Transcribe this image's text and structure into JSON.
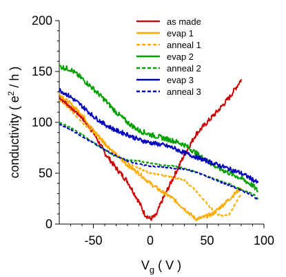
{
  "chart_data": {
    "type": "line",
    "title": "",
    "xlabel": "V",
    "xlabel_sub": "g",
    "xlabel_unit": " ( V )",
    "ylabel": "conductivity ( e",
    "ylabel_sup": "2",
    "ylabel_tail": " / h )",
    "xlim": [
      -80,
      100
    ],
    "ylim": [
      0,
      200
    ],
    "xticks": [
      -50,
      0,
      50,
      100
    ],
    "yticks": [
      0,
      50,
      100,
      150,
      200
    ],
    "grid": false,
    "legend_position": "top-right",
    "series": [
      {
        "name": "as made",
        "color": "#cc0000",
        "dash": "solid",
        "x": [
          -80,
          -70,
          -60,
          -50,
          -40,
          -30,
          -20,
          -10,
          -5,
          0,
          5,
          10,
          20,
          30,
          40,
          50,
          60,
          70,
          80
        ],
        "y": [
          125,
          115,
          105,
          90,
          70,
          55,
          42,
          22,
          10,
          5,
          8,
          22,
          45,
          68,
          88,
          100,
          112,
          125,
          142
        ],
        "noise": 2.5
      },
      {
        "name": "evap 1",
        "color": "#ffaa00",
        "dash": "solid",
        "x": [
          -80,
          -70,
          -60,
          -50,
          -40,
          -30,
          -20,
          -10,
          0,
          10,
          20,
          30,
          40,
          45,
          50,
          55,
          60,
          70,
          80
        ],
        "y": [
          128,
          118,
          108,
          92,
          80,
          68,
          58,
          50,
          40,
          32,
          25,
          15,
          5,
          6,
          8,
          10,
          15,
          25,
          36
        ],
        "noise": 2.0
      },
      {
        "name": "anneal 1",
        "color": "#ffaa00",
        "dash": "dashed",
        "x": [
          -80,
          -70,
          -60,
          -50,
          -40,
          -30,
          -20,
          -10,
          0,
          10,
          20,
          30,
          40,
          50,
          55,
          60,
          63,
          65,
          70,
          80
        ],
        "y": [
          122,
          112,
          100,
          90,
          78,
          68,
          60,
          55,
          50,
          48,
          46,
          43,
          33,
          20,
          14,
          9,
          8,
          8,
          10,
          30
        ],
        "noise": 0.8
      },
      {
        "name": "evap 2",
        "color": "#00a000",
        "dash": "solid",
        "x": [
          -80,
          -70,
          -60,
          -50,
          -40,
          -30,
          -20,
          -10,
          0,
          10,
          20,
          30,
          40,
          50,
          60,
          70,
          80,
          90,
          95
        ],
        "y": [
          155,
          152,
          143,
          133,
          122,
          110,
          100,
          92,
          88,
          85,
          82,
          78,
          70,
          62,
          55,
          50,
          45,
          38,
          32
        ],
        "noise": 2.5
      },
      {
        "name": "anneal 2",
        "color": "#00a000",
        "dash": "dashed",
        "x": [
          -80,
          -70,
          -60,
          -50,
          -40,
          -30,
          -20,
          -10,
          0,
          10,
          20,
          30,
          40,
          50,
          60,
          70,
          80,
          90,
          95
        ],
        "y": [
          100,
          95,
          88,
          80,
          73,
          66,
          63,
          62,
          60,
          58,
          57,
          55,
          51,
          47,
          43,
          39,
          34,
          30,
          25
        ],
        "noise": 0.6
      },
      {
        "name": "evap 3",
        "color": "#0000bb",
        "dash": "solid",
        "x": [
          -80,
          -70,
          -60,
          -50,
          -40,
          -30,
          -20,
          -10,
          0,
          10,
          20,
          30,
          40,
          50,
          60,
          70,
          80,
          90,
          95
        ],
        "y": [
          132,
          125,
          116,
          106,
          98,
          92,
          88,
          83,
          80,
          78,
          75,
          70,
          66,
          62,
          58,
          54,
          50,
          44,
          40
        ],
        "noise": 2.2
      },
      {
        "name": "anneal 3",
        "color": "#0000bb",
        "dash": "dashed",
        "x": [
          -80,
          -70,
          -60,
          -50,
          -40,
          -30,
          -20,
          -10,
          0,
          10,
          20,
          30,
          40,
          50,
          60,
          70,
          80,
          90,
          95
        ],
        "y": [
          98,
          93,
          86,
          80,
          73,
          67,
          62,
          59,
          57,
          56,
          55,
          54,
          51,
          47,
          42,
          38,
          33,
          28,
          23
        ],
        "noise": 0.6
      }
    ]
  }
}
